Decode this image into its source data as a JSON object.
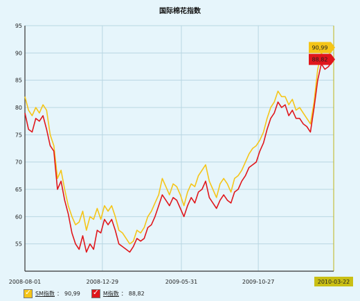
{
  "chart_data": {
    "type": "line",
    "title": "国际棉花指数",
    "y_ticks": [
      55,
      60,
      65,
      70,
      75,
      80,
      85,
      90,
      95
    ],
    "ylim": [
      50,
      95
    ],
    "x_ticks": [
      "2008-08-01",
      "2008-12-29",
      "2009-05-31",
      "2009-10-27",
      "2010-03-22"
    ],
    "x_range": [
      "2008-08-01",
      "2010-03-22"
    ],
    "grid": true,
    "series": [
      {
        "name": "SM指数",
        "color": "#f5c518",
        "last_label": "90,99",
        "dates": [
          "2008-08-01",
          "2008-08-08",
          "2008-08-15",
          "2008-08-22",
          "2008-08-29",
          "2008-09-05",
          "2008-09-12",
          "2008-09-19",
          "2008-09-26",
          "2008-10-03",
          "2008-10-10",
          "2008-10-17",
          "2008-10-24",
          "2008-10-31",
          "2008-11-07",
          "2008-11-14",
          "2008-11-21",
          "2008-11-28",
          "2008-12-05",
          "2008-12-12",
          "2008-12-19",
          "2008-12-26",
          "2009-01-02",
          "2009-01-09",
          "2009-01-16",
          "2009-01-23",
          "2009-01-30",
          "2009-02-06",
          "2009-02-13",
          "2009-02-20",
          "2009-02-27",
          "2009-03-06",
          "2009-03-13",
          "2009-03-20",
          "2009-03-27",
          "2009-04-03",
          "2009-04-10",
          "2009-04-17",
          "2009-04-24",
          "2009-05-01",
          "2009-05-08",
          "2009-05-15",
          "2009-05-22",
          "2009-05-29",
          "2009-06-05",
          "2009-06-12",
          "2009-06-19",
          "2009-06-26",
          "2009-07-03",
          "2009-07-10",
          "2009-07-17",
          "2009-07-24",
          "2009-07-31",
          "2009-08-07",
          "2009-08-14",
          "2009-08-21",
          "2009-08-28",
          "2009-09-04",
          "2009-09-11",
          "2009-09-18",
          "2009-09-25",
          "2009-10-02",
          "2009-10-09",
          "2009-10-16",
          "2009-10-23",
          "2009-10-30",
          "2009-11-06",
          "2009-11-13",
          "2009-11-20",
          "2009-11-27",
          "2009-12-04",
          "2009-12-11",
          "2009-12-18",
          "2009-12-25",
          "2010-01-01",
          "2010-01-08",
          "2010-01-15",
          "2010-01-22",
          "2010-01-29",
          "2010-02-05",
          "2010-02-12",
          "2010-02-19",
          "2010-02-26",
          "2010-03-05",
          "2010-03-12",
          "2010-03-19",
          "2010-03-22"
        ],
        "values": [
          82.0,
          79.5,
          78.5,
          80.0,
          79.0,
          80.5,
          79.5,
          75.0,
          73.0,
          67.0,
          68.5,
          65.0,
          62.0,
          60.0,
          58.5,
          59.0,
          61.0,
          57.5,
          60.0,
          59.5,
          61.5,
          59.5,
          62.0,
          61.0,
          62.0,
          60.0,
          57.5,
          57.0,
          56.0,
          55.0,
          55.5,
          57.5,
          57.0,
          58.0,
          60.0,
          61.0,
          62.5,
          64.0,
          67.0,
          65.5,
          64.0,
          66.0,
          65.5,
          64.0,
          62.0,
          64.5,
          66.0,
          65.5,
          67.5,
          68.5,
          69.5,
          66.5,
          65.0,
          63.5,
          66.0,
          67.0,
          66.0,
          64.5,
          67.0,
          67.5,
          68.5,
          70.0,
          71.5,
          72.5,
          73.0,
          74.0,
          75.5,
          78.0,
          80.0,
          81.0,
          83.0,
          82.0,
          82.0,
          80.5,
          81.5,
          79.5,
          80.0,
          79.0,
          78.0,
          77.0,
          81.0,
          87.0,
          90.0,
          89.0,
          89.5,
          91.0,
          90.99
        ]
      },
      {
        "name": "M指数",
        "color": "#e0161b",
        "last_label": "88,82",
        "dates": [
          "2008-08-01",
          "2008-08-08",
          "2008-08-15",
          "2008-08-22",
          "2008-08-29",
          "2008-09-05",
          "2008-09-12",
          "2008-09-19",
          "2008-09-26",
          "2008-10-03",
          "2008-10-10",
          "2008-10-17",
          "2008-10-24",
          "2008-10-31",
          "2008-11-07",
          "2008-11-14",
          "2008-11-21",
          "2008-11-28",
          "2008-12-05",
          "2008-12-12",
          "2008-12-19",
          "2008-12-26",
          "2009-01-02",
          "2009-01-09",
          "2009-01-16",
          "2009-01-23",
          "2009-01-30",
          "2009-02-06",
          "2009-02-13",
          "2009-02-20",
          "2009-02-27",
          "2009-03-06",
          "2009-03-13",
          "2009-03-20",
          "2009-03-27",
          "2009-04-03",
          "2009-04-10",
          "2009-04-17",
          "2009-04-24",
          "2009-05-01",
          "2009-05-08",
          "2009-05-15",
          "2009-05-22",
          "2009-05-29",
          "2009-06-05",
          "2009-06-12",
          "2009-06-19",
          "2009-06-26",
          "2009-07-03",
          "2009-07-10",
          "2009-07-17",
          "2009-07-24",
          "2009-07-31",
          "2009-08-07",
          "2009-08-14",
          "2009-08-21",
          "2009-08-28",
          "2009-09-04",
          "2009-09-11",
          "2009-09-18",
          "2009-09-25",
          "2009-10-02",
          "2009-10-09",
          "2009-10-16",
          "2009-10-23",
          "2009-10-30",
          "2009-11-06",
          "2009-11-13",
          "2009-11-20",
          "2009-11-27",
          "2009-12-04",
          "2009-12-11",
          "2009-12-18",
          "2009-12-25",
          "2010-01-01",
          "2010-01-08",
          "2010-01-15",
          "2010-01-22",
          "2010-01-29",
          "2010-02-05",
          "2010-02-12",
          "2010-02-19",
          "2010-02-26",
          "2010-03-05",
          "2010-03-12",
          "2010-03-19",
          "2010-03-22"
        ],
        "values": [
          79.0,
          76.0,
          75.5,
          78.0,
          77.5,
          78.5,
          76.0,
          73.0,
          72.0,
          65.0,
          66.5,
          63.0,
          60.5,
          57.0,
          55.0,
          54.0,
          56.5,
          53.5,
          55.0,
          54.0,
          57.5,
          57.0,
          59.5,
          58.5,
          59.5,
          57.5,
          55.0,
          54.5,
          54.0,
          53.5,
          54.5,
          56.0,
          55.5,
          56.0,
          58.0,
          58.5,
          60.0,
          62.0,
          64.0,
          63.0,
          62.0,
          63.5,
          63.0,
          61.5,
          60.0,
          62.0,
          63.5,
          62.5,
          64.5,
          65.0,
          66.5,
          63.5,
          62.5,
          61.5,
          63.0,
          64.0,
          63.0,
          62.5,
          64.5,
          65.0,
          66.5,
          67.5,
          69.0,
          69.5,
          70.0,
          72.0,
          73.5,
          76.0,
          78.0,
          79.0,
          81.0,
          80.0,
          80.5,
          78.5,
          79.5,
          78.0,
          78.0,
          77.0,
          76.5,
          75.5,
          80.0,
          85.0,
          88.0,
          87.0,
          87.5,
          88.5,
          88.82
        ]
      }
    ]
  },
  "legend": {
    "items": [
      {
        "name": "SM指数",
        "value": "90,99"
      },
      {
        "name": "M指数",
        "value": "88,82"
      }
    ],
    "separator": "："
  }
}
